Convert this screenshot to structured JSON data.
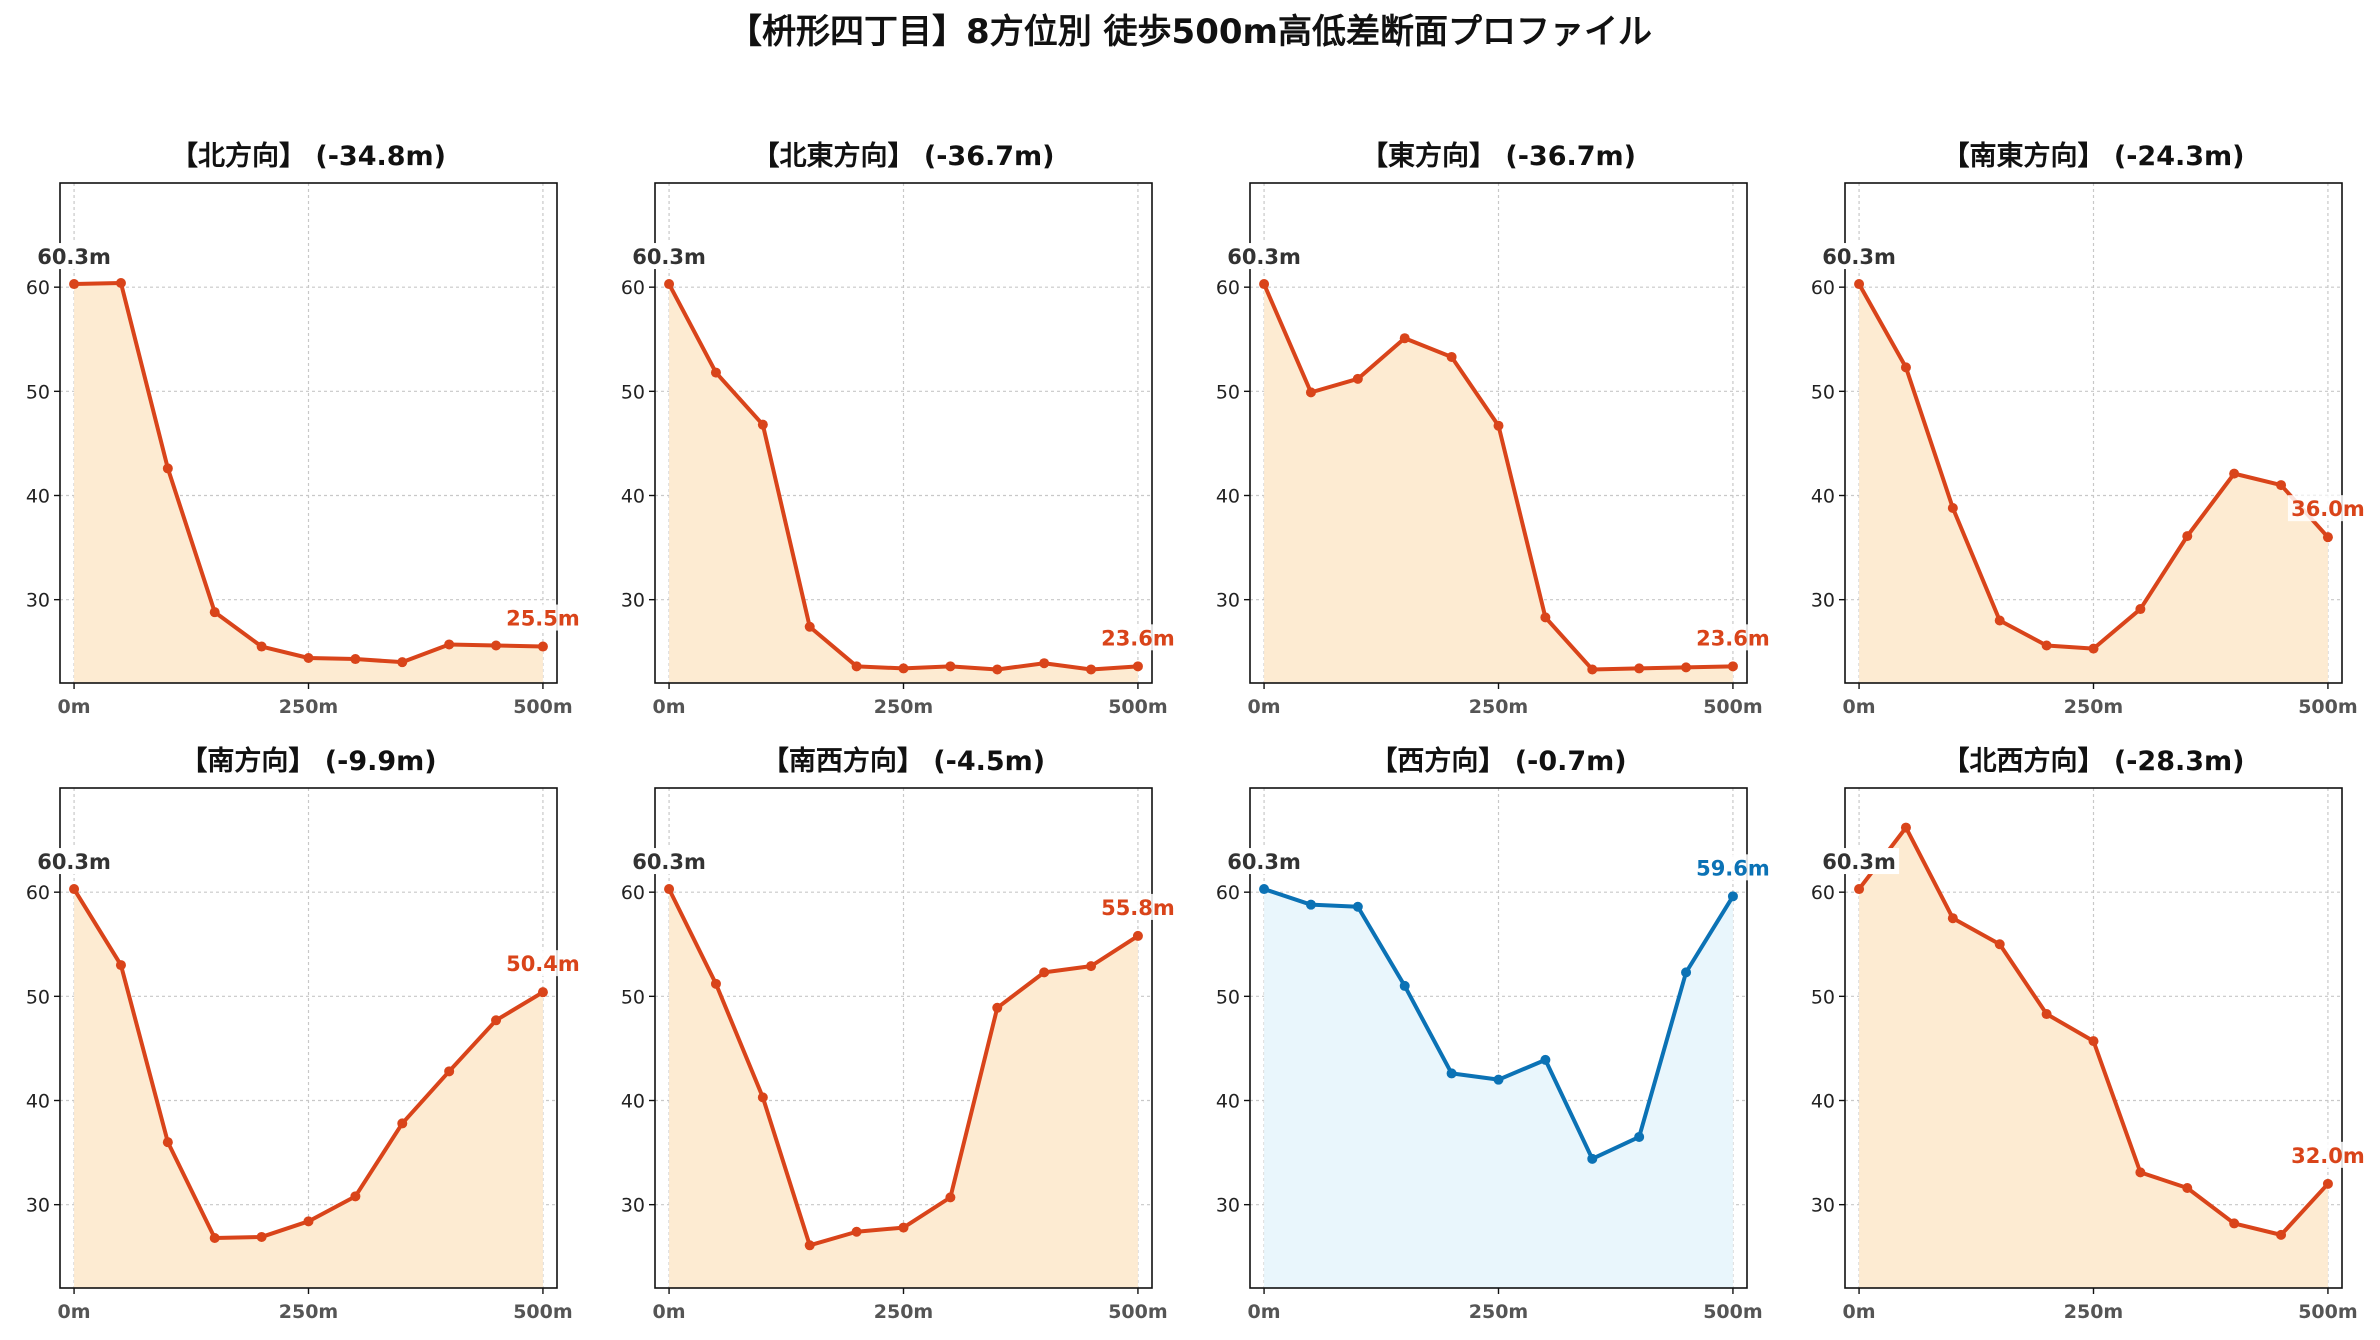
{
  "title": "【枡形四丁目】8方位別 徒歩500m高低差断面プロファイル",
  "colors": {
    "down_line": "#d9441a",
    "down_fill": "#fdebd2",
    "up_line": "#0b72b5",
    "up_fill": "#e9f6fc",
    "start_label": "#333333"
  },
  "chart_data": [
    {
      "type": "area",
      "title": "【北方向】 (-34.8m)",
      "x": [
        0,
        50,
        100,
        150,
        200,
        250,
        300,
        350,
        400,
        450,
        500
      ],
      "y": [
        60.3,
        60.4,
        42.6,
        28.8,
        25.5,
        24.4,
        24.3,
        24.0,
        25.7,
        25.6,
        25.5
      ],
      "xticks": [
        "0m",
        "250m",
        "500m"
      ],
      "yticks": [
        30,
        40,
        50,
        60
      ],
      "ylim": [
        22,
        70
      ],
      "xlim": [
        -15,
        515
      ],
      "start_label": "60.3m",
      "end_label": "25.5m",
      "color_scheme": "down",
      "grid": true
    },
    {
      "type": "area",
      "title": "【北東方向】 (-36.7m)",
      "x": [
        0,
        50,
        100,
        150,
        200,
        250,
        300,
        350,
        400,
        450,
        500
      ],
      "y": [
        60.3,
        51.8,
        46.8,
        27.4,
        23.6,
        23.4,
        23.6,
        23.3,
        23.9,
        23.3,
        23.6
      ],
      "xticks": [
        "0m",
        "250m",
        "500m"
      ],
      "yticks": [
        30,
        40,
        50,
        60
      ],
      "ylim": [
        22,
        70
      ],
      "xlim": [
        -15,
        515
      ],
      "start_label": "60.3m",
      "end_label": "23.6m",
      "color_scheme": "down",
      "grid": true
    },
    {
      "type": "area",
      "title": "【東方向】 (-36.7m)",
      "x": [
        0,
        50,
        100,
        150,
        200,
        250,
        300,
        350,
        400,
        450,
        500
      ],
      "y": [
        60.3,
        49.9,
        51.2,
        55.1,
        53.3,
        46.7,
        28.3,
        23.3,
        23.4,
        23.5,
        23.6
      ],
      "xticks": [
        "0m",
        "250m",
        "500m"
      ],
      "yticks": [
        30,
        40,
        50,
        60
      ],
      "ylim": [
        22,
        70
      ],
      "xlim": [
        -15,
        515
      ],
      "start_label": "60.3m",
      "end_label": "23.6m",
      "color_scheme": "down",
      "grid": true
    },
    {
      "type": "area",
      "title": "【南東方向】 (-24.3m)",
      "x": [
        0,
        50,
        100,
        150,
        200,
        250,
        300,
        350,
        400,
        450,
        500
      ],
      "y": [
        60.3,
        52.3,
        38.8,
        28.0,
        25.6,
        25.3,
        29.1,
        36.1,
        42.1,
        41.0,
        36.0
      ],
      "xticks": [
        "0m",
        "250m",
        "500m"
      ],
      "yticks": [
        30,
        40,
        50,
        60
      ],
      "ylim": [
        22,
        70
      ],
      "xlim": [
        -15,
        515
      ],
      "start_label": "60.3m",
      "end_label": "36.0m",
      "color_scheme": "down",
      "grid": true
    },
    {
      "type": "area",
      "title": "【南方向】 (-9.9m)",
      "x": [
        0,
        50,
        100,
        150,
        200,
        250,
        300,
        350,
        400,
        450,
        500
      ],
      "y": [
        60.3,
        53.0,
        36.0,
        26.8,
        26.9,
        28.4,
        30.8,
        37.8,
        42.8,
        47.7,
        50.4
      ],
      "xticks": [
        "0m",
        "250m",
        "500m"
      ],
      "yticks": [
        30,
        40,
        50,
        60
      ],
      "ylim": [
        22,
        70
      ],
      "xlim": [
        -15,
        515
      ],
      "start_label": "60.3m",
      "end_label": "50.4m",
      "color_scheme": "down",
      "grid": true
    },
    {
      "type": "area",
      "title": "【南西方向】 (-4.5m)",
      "x": [
        0,
        50,
        100,
        150,
        200,
        250,
        300,
        350,
        400,
        450,
        500
      ],
      "y": [
        60.3,
        51.2,
        40.3,
        26.1,
        27.4,
        27.8,
        30.7,
        48.9,
        52.3,
        52.9,
        55.8
      ],
      "xticks": [
        "0m",
        "250m",
        "500m"
      ],
      "yticks": [
        30,
        40,
        50,
        60
      ],
      "ylim": [
        22,
        70
      ],
      "xlim": [
        -15,
        515
      ],
      "start_label": "60.3m",
      "end_label": "55.8m",
      "color_scheme": "down",
      "grid": true
    },
    {
      "type": "area",
      "title": "【西方向】 (-0.7m)",
      "x": [
        0,
        50,
        100,
        150,
        200,
        250,
        300,
        350,
        400,
        450,
        500
      ],
      "y": [
        60.3,
        58.8,
        58.6,
        51.0,
        42.6,
        42.0,
        43.9,
        34.4,
        36.5,
        52.3,
        59.6
      ],
      "xticks": [
        "0m",
        "250m",
        "500m"
      ],
      "yticks": [
        30,
        40,
        50,
        60
      ],
      "ylim": [
        22,
        70
      ],
      "xlim": [
        -15,
        515
      ],
      "start_label": "60.3m",
      "end_label": "59.6m",
      "color_scheme": "up",
      "grid": true
    },
    {
      "type": "area",
      "title": "【北西方向】 (-28.3m)",
      "x": [
        0,
        50,
        100,
        150,
        200,
        250,
        300,
        350,
        400,
        450,
        500
      ],
      "y": [
        60.3,
        66.2,
        57.5,
        55.0,
        48.3,
        45.7,
        33.1,
        31.6,
        28.2,
        27.1,
        32.0
      ],
      "xticks": [
        "0m",
        "250m",
        "500m"
      ],
      "yticks": [
        30,
        40,
        50,
        60
      ],
      "ylim": [
        22,
        70
      ],
      "xlim": [
        -15,
        515
      ],
      "start_label": "60.3m",
      "end_label": "32.0m",
      "color_scheme": "down",
      "grid": true
    }
  ]
}
